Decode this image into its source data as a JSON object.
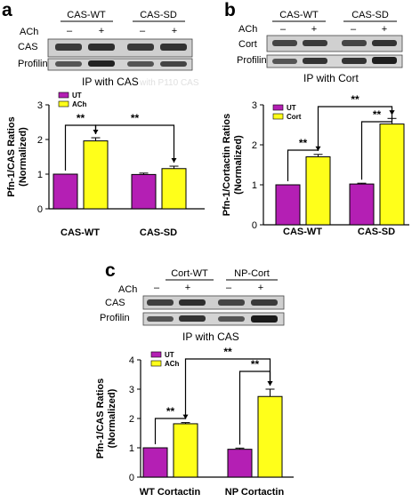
{
  "panels": {
    "a": {
      "letter": "a",
      "gel": {
        "groups": [
          "CAS-WT",
          "CAS-SD"
        ],
        "treatment_label": "ACh",
        "treatment_marks": [
          "–",
          "+",
          "–",
          "+"
        ],
        "rows": [
          "CAS",
          "Profilin"
        ],
        "ip": "IP with CAS",
        "ghost": "with P110 CAS"
      }
    },
    "b": {
      "letter": "b",
      "gel": {
        "groups": [
          "CAS-WT",
          "CAS-SD"
        ],
        "treatment_label": "ACh",
        "treatment_marks": [
          "–",
          "+",
          "–",
          "+"
        ],
        "rows": [
          "Cort",
          "Profilin"
        ],
        "ip": "IP with Cort"
      }
    },
    "c": {
      "letter": "c",
      "gel": {
        "groups": [
          "Cort-WT",
          "NP-Cort"
        ],
        "treatment_label": "ACh",
        "treatment_marks": [
          "–",
          "+",
          "–",
          "+"
        ],
        "rows": [
          "CAS",
          "Profilin"
        ],
        "ip": "IP with CAS"
      }
    }
  },
  "colors": {
    "UT": "#b41fb4",
    "ACh": "#ffff1a",
    "stroke": "#000000"
  },
  "chart_data": [
    {
      "id": "a",
      "type": "bar",
      "categories": [
        "CAS-WT",
        "CAS-SD"
      ],
      "series": [
        {
          "name": "UT",
          "values": [
            1.0,
            0.99
          ],
          "errors": [
            0,
            0.04
          ]
        },
        {
          "name": "ACh",
          "values": [
            1.96,
            1.16
          ],
          "errors": [
            0.09,
            0.07
          ]
        }
      ],
      "ylabel": "Pfn-1/CAS Ratios\n(Normalized)",
      "ylim": [
        0,
        3
      ],
      "yticks": [
        "0",
        "1",
        "2",
        "3"
      ],
      "significance": [
        "**",
        "**"
      ],
      "legend_position": "top-left"
    },
    {
      "id": "b",
      "type": "bar",
      "categories": [
        "CAS-WT",
        "CAS-SD"
      ],
      "series": [
        {
          "name": "UT",
          "values": [
            1.0,
            1.02
          ],
          "errors": [
            0,
            0.02
          ]
        },
        {
          "name": "Cort",
          "values": [
            1.7,
            2.52
          ],
          "errors": [
            0.06,
            0.14
          ]
        }
      ],
      "ylabel": "Pfn-1/Cortactin Ratios\n(Normalized)",
      "ylim": [
        0,
        3
      ],
      "yticks": [
        "0",
        "1",
        "2",
        "3"
      ],
      "significance": [
        "**",
        "**",
        "**"
      ],
      "legend_position": "top-left"
    },
    {
      "id": "c",
      "type": "bar",
      "categories": [
        "WT Cortactin",
        "NP Cortactin"
      ],
      "series": [
        {
          "name": "UT",
          "values": [
            1.0,
            0.95
          ],
          "errors": [
            0,
            0.04
          ]
        },
        {
          "name": "ACh",
          "values": [
            1.82,
            2.75
          ],
          "errors": [
            0.04,
            0.25
          ]
        }
      ],
      "ylabel": "Pfn-1/CAS Ratios\n(Normalized)",
      "ylim": [
        0,
        4
      ],
      "yticks": [
        "0",
        "1",
        "2",
        "3",
        "4"
      ],
      "significance": [
        "**",
        "**",
        "**"
      ],
      "legend_position": "top-left"
    }
  ]
}
